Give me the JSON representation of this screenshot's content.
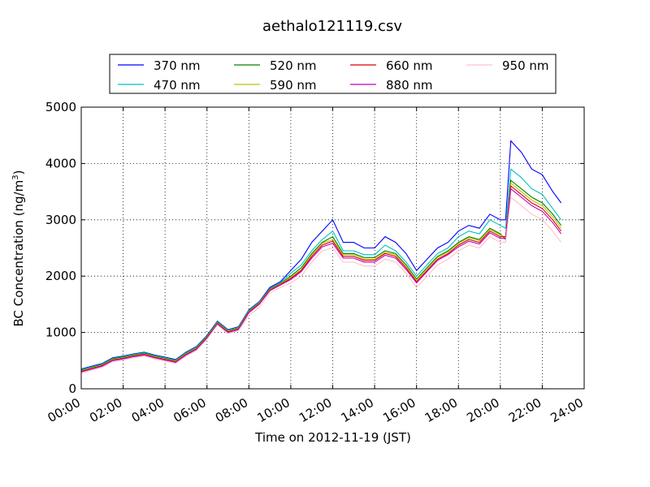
{
  "chart_data": {
    "type": "line",
    "title": "aethalo121119.csv",
    "xlabel": "Time on 2012-11-19 (JST)",
    "ylabel": "BC Concentration (ng/m",
    "ylabel_sup": "3",
    "ylabel_close": ")",
    "xlim": [
      0,
      24
    ],
    "ylim": [
      0,
      5000
    ],
    "x_ticks": [
      0,
      2,
      4,
      6,
      8,
      10,
      12,
      14,
      16,
      18,
      20,
      22,
      24
    ],
    "x_tick_labels": [
      "00:00",
      "02:00",
      "04:00",
      "06:00",
      "08:00",
      "10:00",
      "12:00",
      "14:00",
      "16:00",
      "18:00",
      "20:00",
      "22:00",
      "24:00"
    ],
    "y_ticks": [
      0,
      1000,
      2000,
      3000,
      4000,
      5000
    ],
    "y_tick_labels": [
      "0",
      "1000",
      "2000",
      "3000",
      "4000",
      "5000"
    ],
    "grid": true,
    "legend_position": "top",
    "x": [
      0,
      0.5,
      1,
      1.5,
      2,
      2.5,
      3,
      3.5,
      4,
      4.5,
      5,
      5.5,
      6,
      6.5,
      7,
      7.5,
      8,
      8.5,
      9,
      9.5,
      10,
      10.5,
      11,
      11.5,
      12,
      12.5,
      13,
      13.5,
      14,
      14.5,
      15,
      15.5,
      16,
      16.5,
      17,
      17.5,
      18,
      18.5,
      19,
      19.5,
      20,
      20.25,
      20.5,
      21,
      21.5,
      22,
      22.5,
      22.9
    ],
    "series": [
      {
        "name": "370 nm",
        "color": "#0000ff",
        "values": [
          350,
          400,
          450,
          550,
          580,
          620,
          650,
          600,
          560,
          520,
          650,
          750,
          950,
          1200,
          1050,
          1100,
          1400,
          1550,
          1800,
          1900,
          2100,
          2300,
          2600,
          2800,
          3000,
          2600,
          2600,
          2500,
          2500,
          2700,
          2600,
          2400,
          2100,
          2300,
          2500,
          2600,
          2800,
          2900,
          2850,
          3100,
          3000,
          3000,
          4400,
          4200,
          3900,
          3800,
          3500,
          3300
        ]
      },
      {
        "name": "470 nm",
        "color": "#00bfbf",
        "values": [
          340,
          390,
          440,
          540,
          570,
          610,
          640,
          590,
          550,
          510,
          640,
          740,
          940,
          1190,
          1040,
          1090,
          1390,
          1540,
          1780,
          1880,
          2050,
          2200,
          2450,
          2650,
          2800,
          2450,
          2450,
          2380,
          2380,
          2550,
          2450,
          2250,
          2000,
          2200,
          2400,
          2500,
          2700,
          2800,
          2750,
          3000,
          2900,
          2850,
          3900,
          3750,
          3550,
          3450,
          3200,
          3000
        ]
      },
      {
        "name": "520 nm",
        "color": "#008000",
        "values": [
          330,
          380,
          430,
          530,
          560,
          600,
          630,
          580,
          540,
          500,
          630,
          730,
          930,
          1180,
          1030,
          1080,
          1380,
          1530,
          1770,
          1870,
          2000,
          2150,
          2400,
          2600,
          2700,
          2400,
          2400,
          2330,
          2330,
          2450,
          2400,
          2200,
          1950,
          2150,
          2350,
          2450,
          2600,
          2700,
          2650,
          2850,
          2750,
          2650,
          3700,
          3550,
          3400,
          3300,
          3100,
          2900
        ]
      },
      {
        "name": "590 nm",
        "color": "#bfbf00",
        "values": [
          320,
          370,
          420,
          520,
          550,
          590,
          620,
          570,
          530,
          490,
          620,
          720,
          920,
          1170,
          1020,
          1070,
          1370,
          1520,
          1760,
          1860,
          1980,
          2120,
          2380,
          2580,
          2650,
          2380,
          2380,
          2300,
          2300,
          2420,
          2380,
          2180,
          1930,
          2130,
          2330,
          2430,
          2580,
          2680,
          2630,
          2830,
          2730,
          2680,
          3650,
          3500,
          3350,
          3250,
          3050,
          2850
        ]
      },
      {
        "name": "660 nm",
        "color": "#dd0000",
        "values": [
          310,
          360,
          410,
          510,
          540,
          580,
          610,
          560,
          520,
          480,
          610,
          710,
          910,
          1160,
          1010,
          1060,
          1360,
          1510,
          1750,
          1850,
          1960,
          2100,
          2350,
          2550,
          2620,
          2350,
          2350,
          2280,
          2280,
          2400,
          2350,
          2150,
          1900,
          2100,
          2300,
          2400,
          2550,
          2650,
          2600,
          2800,
          2700,
          2700,
          3600,
          3450,
          3300,
          3200,
          3000,
          2800
        ]
      },
      {
        "name": "880 nm",
        "color": "#bf00bf",
        "values": [
          300,
          350,
          400,
          500,
          530,
          570,
          600,
          550,
          510,
          470,
          600,
          700,
          900,
          1150,
          1000,
          1050,
          1350,
          1500,
          1740,
          1840,
          1940,
          2080,
          2320,
          2520,
          2580,
          2320,
          2320,
          2250,
          2250,
          2370,
          2320,
          2120,
          1880,
          2080,
          2280,
          2380,
          2520,
          2620,
          2570,
          2770,
          2670,
          2670,
          3550,
          3400,
          3250,
          3150,
          2950,
          2750
        ]
      },
      {
        "name": "950 nm",
        "color": "#ffc0cb",
        "values": [
          280,
          330,
          380,
          480,
          510,
          550,
          580,
          530,
          490,
          450,
          580,
          680,
          880,
          1130,
          980,
          1030,
          1300,
          1450,
          1700,
          1800,
          1880,
          2000,
          2250,
          2450,
          2500,
          2250,
          2250,
          2180,
          2180,
          2300,
          2250,
          2050,
          1800,
          2000,
          2200,
          2300,
          2450,
          2550,
          2500,
          2700,
          2600,
          2600,
          3400,
          3250,
          3100,
          3000,
          2800,
          2600
        ]
      }
    ]
  }
}
